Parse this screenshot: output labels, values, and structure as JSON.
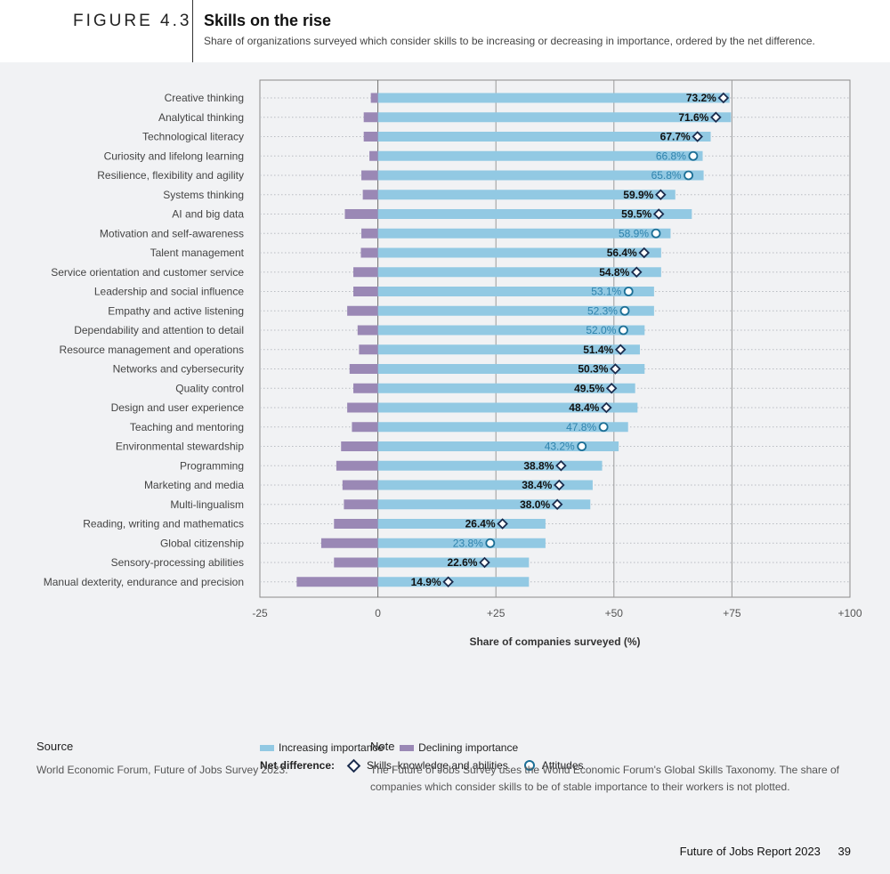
{
  "header": {
    "figure_label": "FIGURE 4.3",
    "title": "Skills on the rise",
    "subtitle": "Share of organizations surveyed which consider skills to be increasing or decreasing in importance, ordered by the net difference."
  },
  "colors": {
    "increasing": "#92c9e3",
    "declining": "#9a88b5",
    "diamond": "#1a2b4d",
    "circle": "#1c6f96",
    "panel": "#f1f2f4"
  },
  "chart_data": {
    "type": "bar",
    "orientation": "horizontal",
    "xlabel": "Share of companies surveyed (%)",
    "xlim": [
      -25,
      100
    ],
    "xticks": [
      {
        "value": -25,
        "label": "-25"
      },
      {
        "value": 0,
        "label": "0"
      },
      {
        "value": 25,
        "label": "+25"
      },
      {
        "value": 50,
        "label": "+50"
      },
      {
        "value": 75,
        "label": "+75"
      },
      {
        "value": 100,
        "label": "+100"
      }
    ],
    "grid": true,
    "categories": [
      "Creative thinking",
      "Analytical thinking",
      "Technological literacy",
      "Curiosity and lifelong learning",
      "Resilience, flexibility and agility",
      "Systems thinking",
      "AI and big data",
      "Motivation and self-awareness",
      "Talent management",
      "Service orientation and customer service",
      "Leadership and social influence",
      "Empathy and active listening",
      "Dependability and attention to detail",
      "Resource management and operations",
      "Networks and cybersecurity",
      "Quality control",
      "Design and user experience",
      "Teaching and mentoring",
      "Environmental stewardship",
      "Programming",
      "Marketing and media",
      "Multi-lingualism",
      "Reading, writing and mathematics",
      "Global citizenship",
      "Sensory-processing abilities",
      "Manual dexterity, endurance and precision"
    ],
    "series": [
      {
        "name": "Increasing importance",
        "values": [
          74.5,
          74.8,
          70.5,
          68.8,
          69.0,
          63.0,
          66.5,
          62.0,
          60.0,
          60.0,
          58.5,
          58.5,
          56.5,
          55.5,
          56.5,
          54.5,
          55.0,
          53.0,
          51.0,
          47.5,
          45.5,
          45.0,
          35.5,
          35.5,
          32.0,
          32.0
        ]
      },
      {
        "name": "Declining importance",
        "values": [
          -1.5,
          -3.0,
          -3.0,
          -1.8,
          -3.5,
          -3.2,
          -7.0,
          -3.5,
          -3.6,
          -5.2,
          -5.2,
          -6.5,
          -4.3,
          -4.0,
          -6.0,
          -5.2,
          -6.5,
          -5.5,
          -7.8,
          -8.8,
          -7.5,
          -7.2,
          -9.3,
          -12.0,
          -9.3,
          -17.2
        ]
      },
      {
        "name": "Net difference",
        "values": [
          73.2,
          71.6,
          67.7,
          66.8,
          65.8,
          59.9,
          59.5,
          58.9,
          56.4,
          54.8,
          53.1,
          52.3,
          52.0,
          51.4,
          50.3,
          49.5,
          48.4,
          47.8,
          43.2,
          38.8,
          38.4,
          38.0,
          26.4,
          23.8,
          22.6,
          14.9
        ],
        "labels": [
          "73.2%",
          "71.6%",
          "67.7%",
          "66.8%",
          "65.8%",
          "59.9%",
          "59.5%",
          "58.9%",
          "56.4%",
          "54.8%",
          "53.1%",
          "52.3%",
          "52.0%",
          "51.4%",
          "50.3%",
          "49.5%",
          "48.4%",
          "47.8%",
          "43.2%",
          "38.8%",
          "38.4%",
          "38.0%",
          "26.4%",
          "23.8%",
          "22.6%",
          "14.9%"
        ],
        "marker_type": [
          "diamond",
          "diamond",
          "diamond",
          "circle",
          "circle",
          "diamond",
          "diamond",
          "circle",
          "diamond",
          "diamond",
          "circle",
          "circle",
          "circle",
          "diamond",
          "diamond",
          "diamond",
          "diamond",
          "circle",
          "circle",
          "diamond",
          "diamond",
          "diamond",
          "diamond",
          "circle",
          "diamond",
          "diamond"
        ]
      }
    ]
  },
  "legend": {
    "increasing": "Increasing importance",
    "declining": "Declining importance",
    "net_label": "Net difference:",
    "skills": "Skills, knowledge and abilities",
    "attitudes": "Attitudes"
  },
  "source": {
    "heading": "Source",
    "text": "World Economic Forum, Future of Jobs Survey 2023."
  },
  "note": {
    "heading": "Note",
    "text": "The Future of Jobs Survey uses the World Economic Forum's Global Skills Taxonomy. The share of companies which consider skills to be of stable importance to their workers is not plotted."
  },
  "footer": {
    "report": "Future of Jobs Report 2023",
    "page": "39"
  }
}
